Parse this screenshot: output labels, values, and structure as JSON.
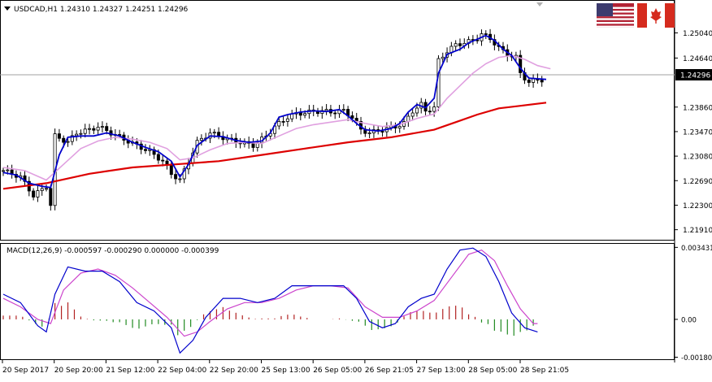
{
  "window": {
    "symbol_label": "USDCAD,H1  1.24310 1.24327 1.24251 1.24296"
  },
  "macd_panel": {
    "label": "MACD(12,26,9) -0.000597 -0.000290 0.000000 -0.000399"
  },
  "current_price": "1.24296",
  "icons": {
    "flag_left": "us-flag-icon",
    "flag_right": "canada-flag-icon",
    "menu": "dropdown-triangle-icon",
    "scroll_marker": "scroll-marker-icon"
  },
  "colors": {
    "background": "#ffffff",
    "bull_candle": "#ffffff",
    "bear_candle": "#000000",
    "ma_fast": "#0000cc",
    "ma_mid": "#e0a0e0",
    "ma_slow": "#dd0000",
    "macd_line": "#0000cc",
    "signal_line": "#cc44cc",
    "hist_positive": "#b22222",
    "hist_negative": "#228b22",
    "current_price_line": "#a0a0a0"
  },
  "chart_data": [
    {
      "type": "candlestick",
      "symbol": "USDCAD",
      "timeframe": "H1",
      "ohlc_last": {
        "open": 1.2431,
        "high": 1.24327,
        "low": 1.24251,
        "close": 1.24296
      },
      "ylim": [
        1.2175,
        1.2555
      ],
      "y_ticks": [
        "1.25040",
        "1.24640",
        "1.24296",
        "1.23860",
        "1.23470",
        "1.23080",
        "1.22690",
        "1.22300",
        "1.21910"
      ],
      "x_ticks": [
        "20 Sep 2017",
        "20 Sep 20:00",
        "21 Sep 12:00",
        "22 Sep 04:00",
        "22 Sep 20:00",
        "25 Sep 13:00",
        "26 Sep 05:00",
        "26 Sep 21:05",
        "27 Sep 13:00",
        "28 Sep 05:00",
        "28 Sep 21:05"
      ],
      "close_path": [
        [
          0,
          1.2285
        ],
        [
          4,
          1.2275
        ],
        [
          7,
          1.2245
        ],
        [
          10,
          1.226
        ],
        [
          11,
          1.223
        ],
        [
          12,
          1.234
        ],
        [
          15,
          1.233
        ],
        [
          17,
          1.2345
        ],
        [
          20,
          1.235
        ],
        [
          22,
          1.2355
        ],
        [
          25,
          1.2345
        ],
        [
          28,
          1.2335
        ],
        [
          31,
          1.2325
        ],
        [
          34,
          1.2315
        ],
        [
          37,
          1.23
        ],
        [
          39,
          1.228
        ],
        [
          41,
          1.227
        ],
        [
          43,
          1.23
        ],
        [
          45,
          1.233
        ],
        [
          48,
          1.2345
        ],
        [
          50,
          1.234
        ],
        [
          52,
          1.2335
        ],
        [
          55,
          1.233
        ],
        [
          58,
          1.2325
        ],
        [
          61,
          1.234
        ],
        [
          63,
          1.2355
        ],
        [
          66,
          1.237
        ],
        [
          68,
          1.2375
        ],
        [
          71,
          1.2378
        ],
        [
          74,
          1.238
        ],
        [
          76,
          1.2378
        ],
        [
          79,
          1.238
        ],
        [
          81,
          1.237
        ],
        [
          83,
          1.235
        ],
        [
          85,
          1.2345
        ],
        [
          88,
          1.235
        ],
        [
          91,
          1.2355
        ],
        [
          93,
          1.236
        ],
        [
          95,
          1.238
        ],
        [
          97,
          1.239
        ],
        [
          98,
          1.238
        ],
        [
          100,
          1.2385
        ],
        [
          101,
          1.246
        ],
        [
          103,
          1.2475
        ],
        [
          105,
          1.2485
        ],
        [
          108,
          1.249
        ],
        [
          110,
          1.2495
        ],
        [
          111,
          1.2502
        ],
        [
          113,
          1.2495
        ],
        [
          115,
          1.248
        ],
        [
          117,
          1.247
        ],
        [
          119,
          1.2465
        ],
        [
          120,
          1.244
        ],
        [
          122,
          1.2425
        ],
        [
          124,
          1.243
        ],
        [
          125,
          1.2429
        ]
      ],
      "ma_fast": [
        [
          0,
          1.2282
        ],
        [
          3,
          1.2278
        ],
        [
          6,
          1.2265
        ],
        [
          9,
          1.226
        ],
        [
          11,
          1.2258
        ],
        [
          13,
          1.231
        ],
        [
          15,
          1.2338
        ],
        [
          18,
          1.234
        ],
        [
          21,
          1.234
        ],
        [
          24,
          1.2345
        ],
        [
          27,
          1.234
        ],
        [
          30,
          1.233
        ],
        [
          33,
          1.2322
        ],
        [
          36,
          1.2315
        ],
        [
          39,
          1.23
        ],
        [
          41,
          1.2275
        ],
        [
          43,
          1.2295
        ],
        [
          45,
          1.2325
        ],
        [
          48,
          1.234
        ],
        [
          51,
          1.2339
        ],
        [
          54,
          1.2333
        ],
        [
          57,
          1.233
        ],
        [
          60,
          1.2332
        ],
        [
          62,
          1.2345
        ],
        [
          64,
          1.237
        ],
        [
          66,
          1.2374
        ],
        [
          69,
          1.2378
        ],
        [
          72,
          1.238
        ],
        [
          75,
          1.2379
        ],
        [
          78,
          1.2382
        ],
        [
          80,
          1.2372
        ],
        [
          82,
          1.236
        ],
        [
          84,
          1.235
        ],
        [
          87,
          1.2348
        ],
        [
          90,
          1.2352
        ],
        [
          92,
          1.236
        ],
        [
          94,
          1.2378
        ],
        [
          96,
          1.239
        ],
        [
          98,
          1.2385
        ],
        [
          100,
          1.24
        ],
        [
          101,
          1.244
        ],
        [
          103,
          1.247
        ],
        [
          106,
          1.2478
        ],
        [
          108,
          1.2488
        ],
        [
          110,
          1.2494
        ],
        [
          112,
          1.25
        ],
        [
          114,
          1.2492
        ],
        [
          116,
          1.2478
        ],
        [
          118,
          1.2468
        ],
        [
          120,
          1.2448
        ],
        [
          122,
          1.2432
        ],
        [
          124,
          1.2431
        ],
        [
          126,
          1.243
        ]
      ],
      "ma_mid": [
        [
          0,
          1.229
        ],
        [
          5,
          1.2285
        ],
        [
          10,
          1.227
        ],
        [
          14,
          1.2295
        ],
        [
          18,
          1.232
        ],
        [
          22,
          1.2332
        ],
        [
          26,
          1.2338
        ],
        [
          30,
          1.2335
        ],
        [
          34,
          1.233
        ],
        [
          38,
          1.232
        ],
        [
          41,
          1.2302
        ],
        [
          44,
          1.2305
        ],
        [
          48,
          1.2318
        ],
        [
          52,
          1.2328
        ],
        [
          56,
          1.233
        ],
        [
          60,
          1.2328
        ],
        [
          64,
          1.234
        ],
        [
          68,
          1.2352
        ],
        [
          72,
          1.2358
        ],
        [
          76,
          1.2362
        ],
        [
          80,
          1.2366
        ],
        [
          84,
          1.236
        ],
        [
          88,
          1.2355
        ],
        [
          92,
          1.2358
        ],
        [
          96,
          1.2368
        ],
        [
          100,
          1.2375
        ],
        [
          103,
          1.24
        ],
        [
          106,
          1.242
        ],
        [
          109,
          1.244
        ],
        [
          112,
          1.2455
        ],
        [
          115,
          1.2465
        ],
        [
          118,
          1.2468
        ],
        [
          121,
          1.2462
        ],
        [
          124,
          1.2452
        ],
        [
          127,
          1.2447
        ]
      ],
      "ma_slow": [
        [
          0,
          1.2256
        ],
        [
          10,
          1.2265
        ],
        [
          20,
          1.228
        ],
        [
          30,
          1.229
        ],
        [
          40,
          1.2295
        ],
        [
          50,
          1.23
        ],
        [
          60,
          1.231
        ],
        [
          70,
          1.232
        ],
        [
          80,
          1.233
        ],
        [
          90,
          1.2338
        ],
        [
          100,
          1.235
        ],
        [
          105,
          1.2362
        ],
        [
          110,
          1.2374
        ],
        [
          115,
          1.2384
        ],
        [
          120,
          1.2388
        ],
        [
          126,
          1.2393
        ]
      ]
    },
    {
      "type": "macd",
      "params": "12,26,9",
      "values": {
        "main": -0.000597,
        "signal": -0.00029,
        "zero": 0.0,
        "histogram": -0.000399
      },
      "ylim": [
        -0.0019,
        0.0036
      ],
      "y_ticks": [
        "0.003431",
        "0.00",
        "-0.001803"
      ],
      "macd_line": [
        [
          0,
          0.0012
        ],
        [
          4,
          0.0008
        ],
        [
          8,
          -0.0003
        ],
        [
          10,
          -0.0006
        ],
        [
          12,
          0.0012
        ],
        [
          15,
          0.0025
        ],
        [
          19,
          0.0023
        ],
        [
          23,
          0.0023
        ],
        [
          27,
          0.0018
        ],
        [
          31,
          0.0008
        ],
        [
          35,
          0.0004
        ],
        [
          39,
          -0.0004
        ],
        [
          41,
          -0.0016
        ],
        [
          44,
          -0.001
        ],
        [
          47,
          0.0001
        ],
        [
          51,
          0.001
        ],
        [
          55,
          0.001
        ],
        [
          59,
          0.0008
        ],
        [
          63,
          0.001
        ],
        [
          67,
          0.0016
        ],
        [
          71,
          0.0016
        ],
        [
          75,
          0.0016
        ],
        [
          79,
          0.0016
        ],
        [
          82,
          0.001
        ],
        [
          85,
          -0.0001
        ],
        [
          88,
          -0.0004
        ],
        [
          91,
          -0.0002
        ],
        [
          94,
          0.0006
        ],
        [
          97,
          0.001
        ],
        [
          100,
          0.0012
        ],
        [
          103,
          0.0024
        ],
        [
          106,
          0.0033
        ],
        [
          109,
          0.0034
        ],
        [
          112,
          0.003
        ],
        [
          115,
          0.0018
        ],
        [
          118,
          0.0003
        ],
        [
          121,
          -0.0004
        ],
        [
          124,
          -0.0006
        ]
      ],
      "signal_line": [
        [
          0,
          0.001
        ],
        [
          4,
          0.0006
        ],
        [
          8,
          0.0
        ],
        [
          11,
          -0.0002
        ],
        [
          14,
          0.0014
        ],
        [
          18,
          0.0022
        ],
        [
          22,
          0.0024
        ],
        [
          26,
          0.0021
        ],
        [
          30,
          0.0015
        ],
        [
          34,
          0.0008
        ],
        [
          38,
          0.0001
        ],
        [
          42,
          -0.0008
        ],
        [
          45,
          -0.0006
        ],
        [
          48,
          -0.0001
        ],
        [
          52,
          0.0005
        ],
        [
          56,
          0.0008
        ],
        [
          60,
          0.0008
        ],
        [
          64,
          0.001
        ],
        [
          68,
          0.0014
        ],
        [
          72,
          0.0016
        ],
        [
          76,
          0.0016
        ],
        [
          80,
          0.0015
        ],
        [
          84,
          0.0006
        ],
        [
          88,
          0.0001
        ],
        [
          92,
          0.0001
        ],
        [
          96,
          0.0004
        ],
        [
          100,
          0.0009
        ],
        [
          104,
          0.002
        ],
        [
          108,
          0.0031
        ],
        [
          111,
          0.0033
        ],
        [
          114,
          0.0028
        ],
        [
          117,
          0.0016
        ],
        [
          120,
          0.0005
        ],
        [
          123,
          -0.0002
        ],
        [
          124,
          -0.0002
        ]
      ]
    }
  ]
}
